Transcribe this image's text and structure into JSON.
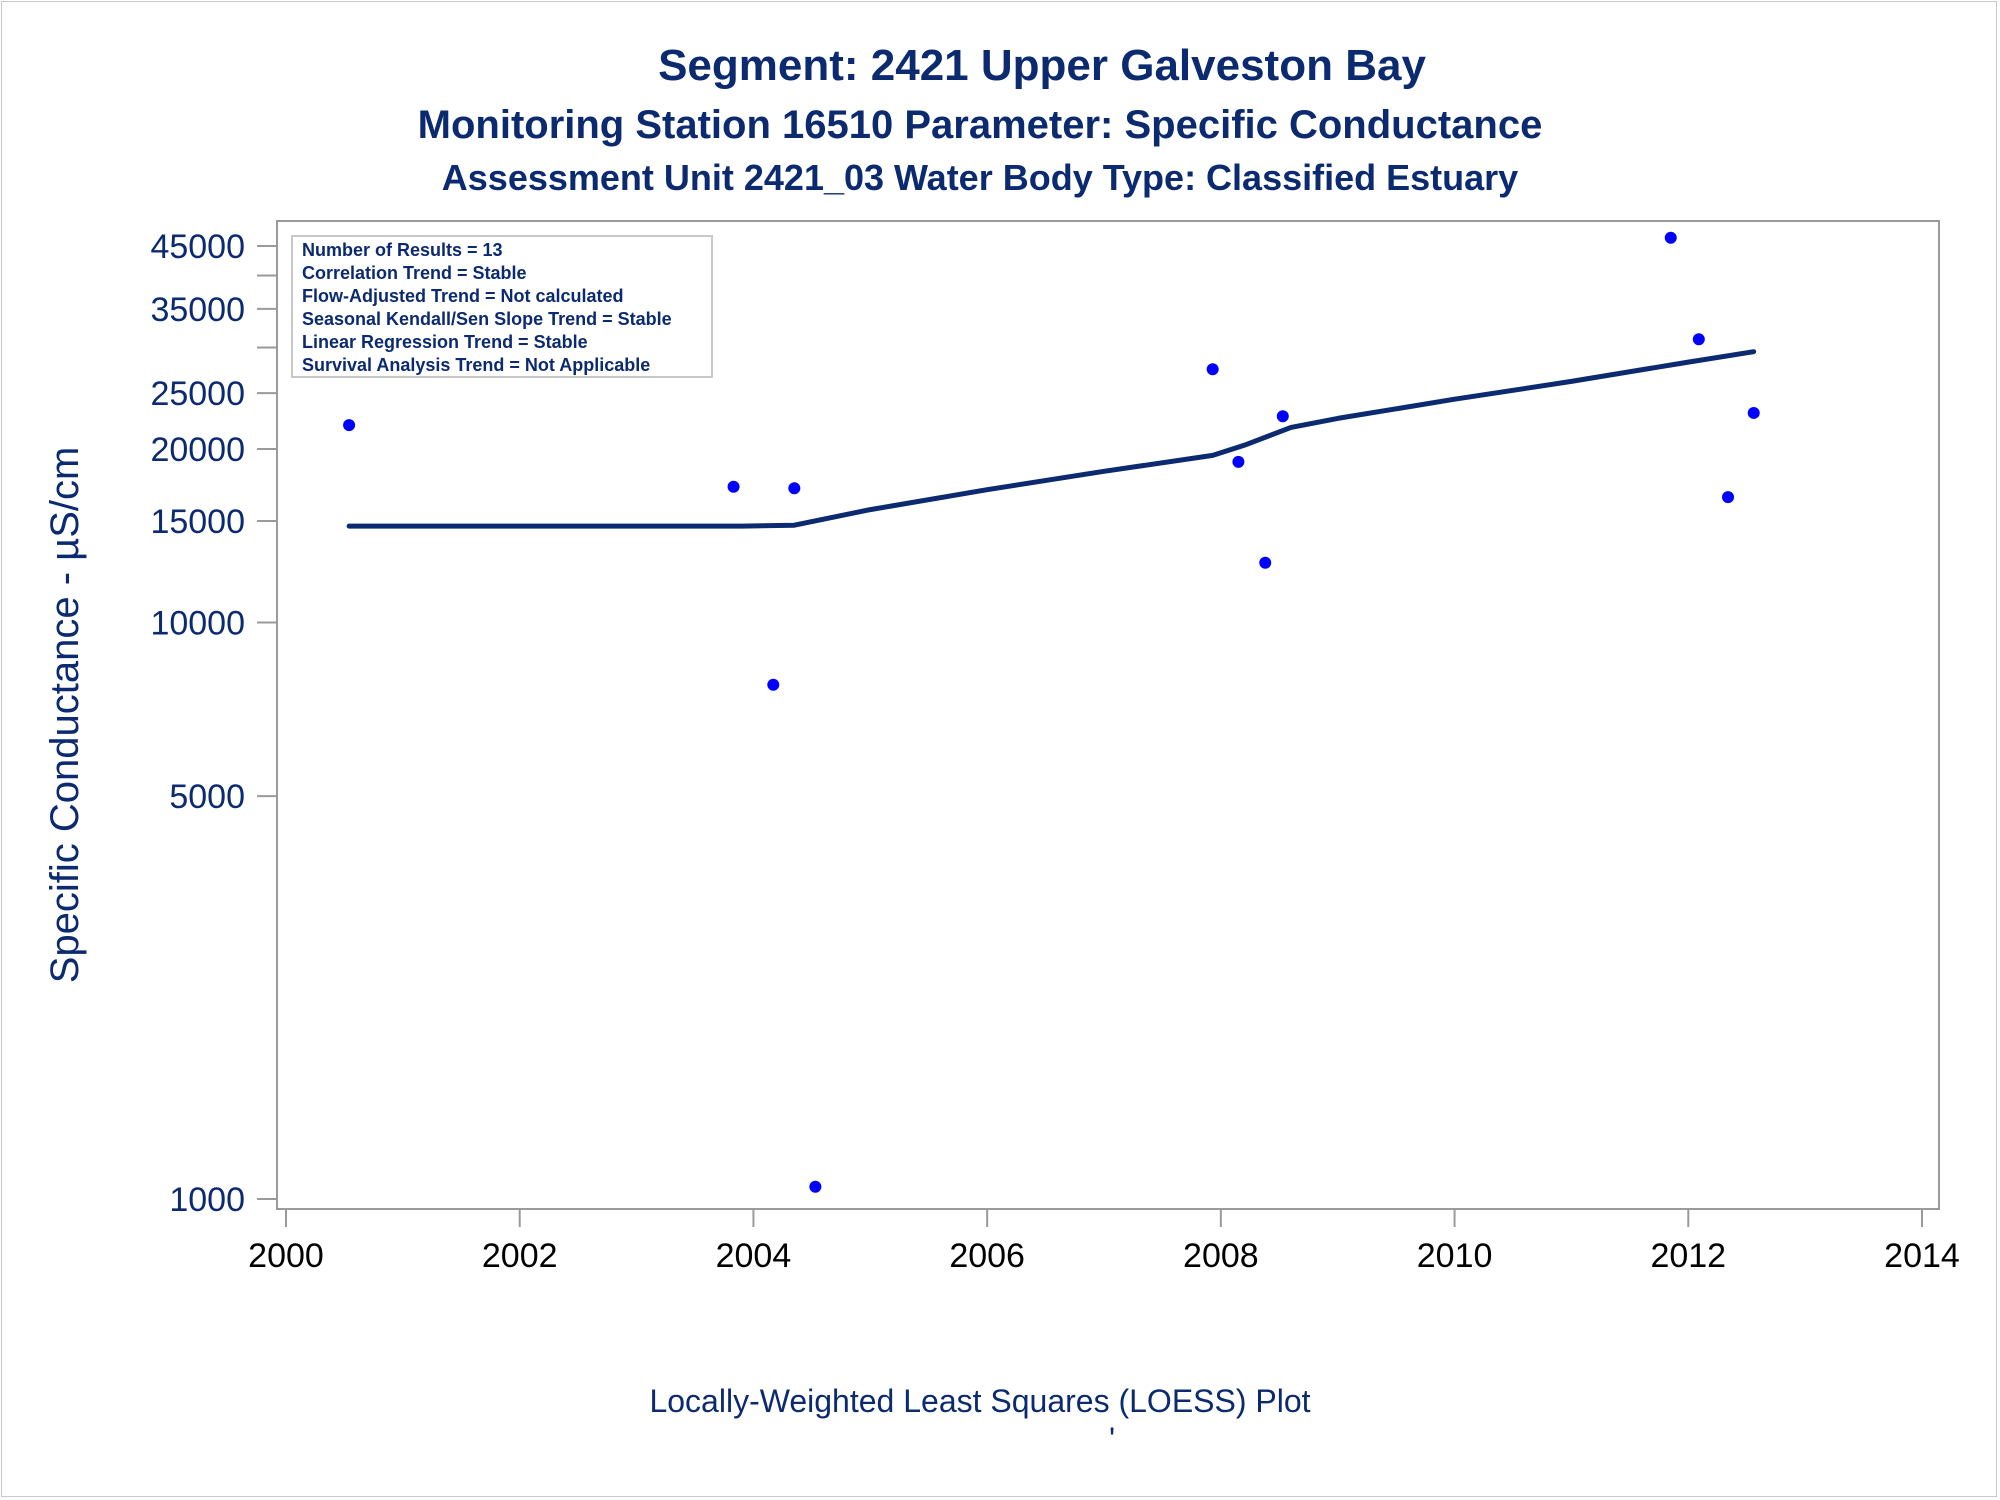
{
  "colors": {
    "title": "#0b2a6f",
    "points": "#0000ff",
    "loess_line": "#0b2a6f",
    "axis": "#9a9a9a"
  },
  "chart_data": {
    "type": "scatter",
    "title": "Segment: 2421  Upper Galveston Bay",
    "subtitle": "Monitoring Station 16510 Parameter: Specific Conductance",
    "subtitle2": "Assessment Unit 2421_03   Water Body Type: Classified Estuary",
    "ylabel": "Specific Conductance -  µS/cm",
    "xlabel": "",
    "footnote": "Locally-Weighted Least Squares (LOESS) Plot",
    "footnote_mark": "'",
    "y_scale": "log",
    "ylim": [
      1000,
      45000
    ],
    "xlim": [
      2000,
      2014
    ],
    "x_ticks": [
      2000,
      2002,
      2004,
      2006,
      2008,
      2010,
      2012,
      2014
    ],
    "x_tick_labels": [
      "2000",
      "2002",
      "2004",
      "2006",
      "2008",
      "2010",
      "2012",
      "2014"
    ],
    "y_ticks": [
      1000,
      5000,
      10000,
      15000,
      20000,
      25000,
      35000,
      45000
    ],
    "y_tick_labels": [
      "1000",
      "5000",
      "10000",
      "15000",
      "20000",
      "25000",
      "35000",
      "45000"
    ],
    "y_minor_ticks": [
      30000,
      40000
    ],
    "grid": false,
    "legend_box": {
      "placement": "top-left",
      "lines": [
        "Number of Results = 13",
        "Correlation Trend = Stable",
        "Flow-Adjusted Trend = Not calculated",
        "Seasonal Kendall/Sen Slope Trend = Stable",
        "Linear Regression Trend = Stable",
        "Survival Analysis Trend = Not Applicable"
      ]
    },
    "series": [
      {
        "kind": "scatter",
        "points": [
          {
            "x": 2000.54,
            "y": 22000
          },
          {
            "x": 2003.83,
            "y": 17200
          },
          {
            "x": 2004.17,
            "y": 7800
          },
          {
            "x": 2004.35,
            "y": 17100
          },
          {
            "x": 2004.53,
            "y": 1050
          },
          {
            "x": 2007.93,
            "y": 27500
          },
          {
            "x": 2008.15,
            "y": 19000
          },
          {
            "x": 2008.38,
            "y": 12700
          },
          {
            "x": 2008.53,
            "y": 22800
          },
          {
            "x": 2011.85,
            "y": 46500
          },
          {
            "x": 2012.09,
            "y": 31000
          },
          {
            "x": 2012.34,
            "y": 16500
          },
          {
            "x": 2012.56,
            "y": 23100
          }
        ]
      },
      {
        "kind": "line",
        "points": [
          {
            "x": 2000.54,
            "y": 14700
          },
          {
            "x": 2003.9,
            "y": 14700
          },
          {
            "x": 2004.35,
            "y": 14750
          },
          {
            "x": 2005.0,
            "y": 15700
          },
          {
            "x": 2006.0,
            "y": 17000
          },
          {
            "x": 2007.0,
            "y": 18300
          },
          {
            "x": 2007.93,
            "y": 19500
          },
          {
            "x": 2008.2,
            "y": 20300
          },
          {
            "x": 2008.6,
            "y": 21800
          },
          {
            "x": 2009.0,
            "y": 22600
          },
          {
            "x": 2010.0,
            "y": 24400
          },
          {
            "x": 2011.0,
            "y": 26200
          },
          {
            "x": 2012.0,
            "y": 28300
          },
          {
            "x": 2012.56,
            "y": 29500
          }
        ]
      }
    ]
  }
}
